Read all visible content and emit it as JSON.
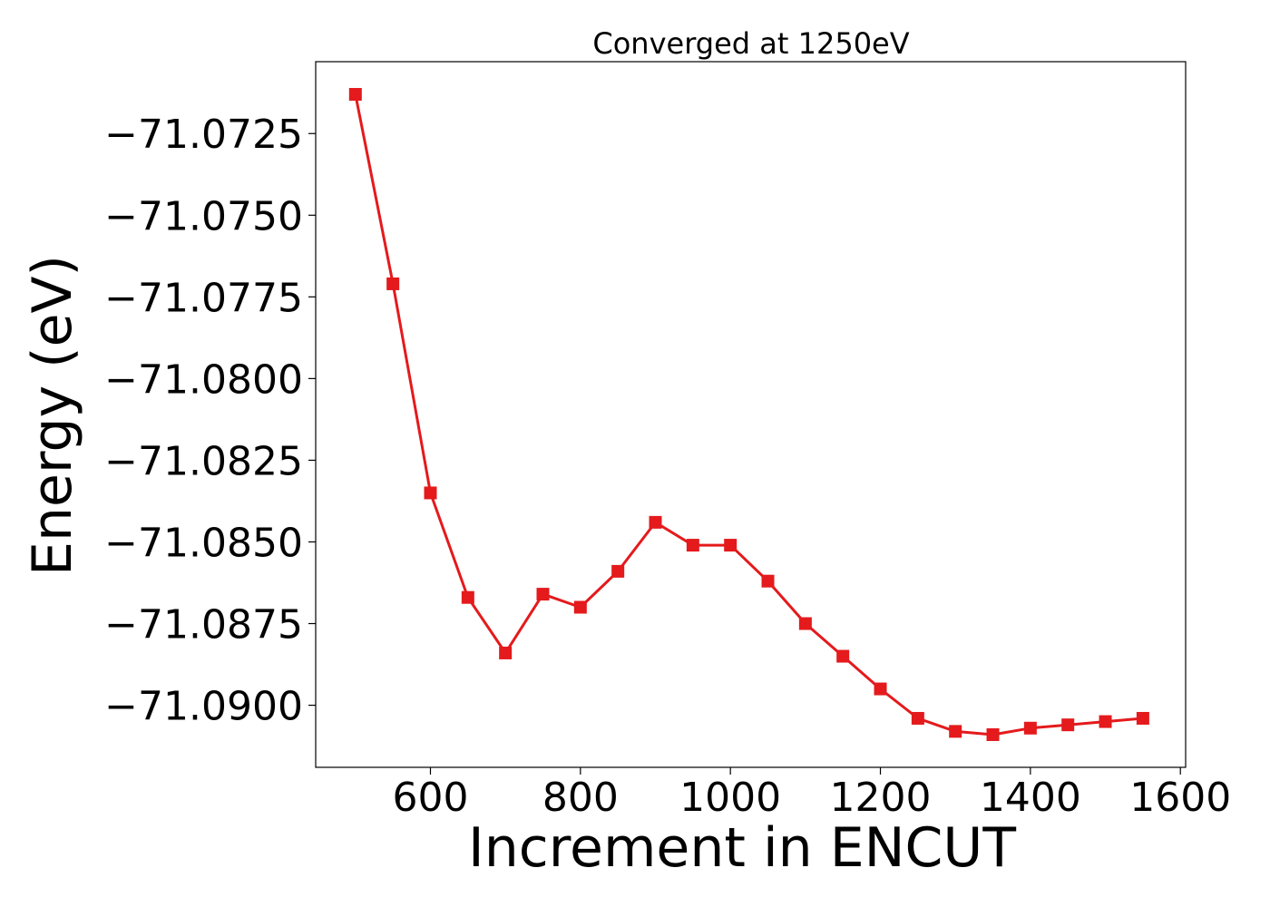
{
  "chart_data": {
    "type": "line",
    "title": "Converged at 1250eV",
    "xlabel": "Increment in ENCUT",
    "ylabel": "Energy (eV)",
    "xlim": [
      447,
      1607
    ],
    "ylim": [
      -71.0919,
      -71.0703
    ],
    "xticks": [
      {
        "value": 600,
        "label": "600"
      },
      {
        "value": 800,
        "label": "800"
      },
      {
        "value": 1000,
        "label": "1000"
      },
      {
        "value": 1200,
        "label": "1200"
      },
      {
        "value": 1400,
        "label": "1400"
      },
      {
        "value": 1600,
        "label": "1600"
      }
    ],
    "yticks": [
      {
        "value": -71.0725,
        "label": "−71.0725"
      },
      {
        "value": -71.075,
        "label": "−71.0750"
      },
      {
        "value": -71.0775,
        "label": "−71.0775"
      },
      {
        "value": -71.08,
        "label": "−71.0800"
      },
      {
        "value": -71.0825,
        "label": "−71.0825"
      },
      {
        "value": -71.085,
        "label": "−71.0850"
      },
      {
        "value": -71.0875,
        "label": "−71.0875"
      },
      {
        "value": -71.09,
        "label": "−71.0900"
      }
    ],
    "grid": false,
    "legend": "none",
    "series": [
      {
        "color": "#e41a1c",
        "marker": "square",
        "x": [
          500,
          550,
          600,
          650,
          700,
          750,
          800,
          850,
          900,
          950,
          1000,
          1050,
          1100,
          1150,
          1200,
          1250,
          1300,
          1350,
          1400,
          1450,
          1500,
          1550
        ],
        "y": [
          -71.0713,
          -71.0771,
          -71.0835,
          -71.0867,
          -71.0884,
          -71.0866,
          -71.087,
          -71.0859,
          -71.0844,
          -71.0851,
          -71.0851,
          -71.0862,
          -71.0875,
          -71.0885,
          -71.0895,
          -71.0904,
          -71.0908,
          -71.0909,
          -71.0907,
          -71.0906,
          -71.0905,
          -71.0904
        ]
      }
    ]
  }
}
